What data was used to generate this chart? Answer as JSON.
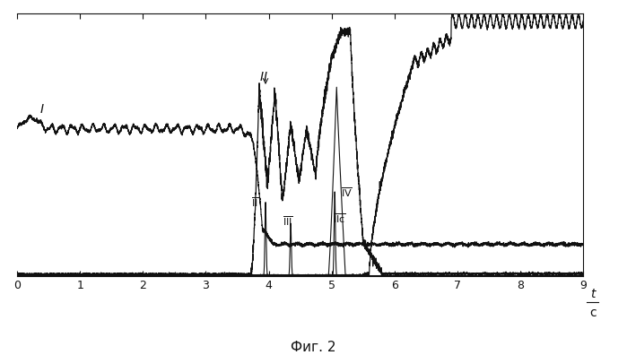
{
  "xlim": [
    0,
    9
  ],
  "ylim": [
    0,
    1
  ],
  "xticks": [
    0,
    1,
    2,
    3,
    4,
    5,
    6,
    7,
    8,
    9
  ],
  "bg_color": "#ffffff",
  "line_color": "#111111",
  "title": "Фиг. 2",
  "curve_I_level": 0.56,
  "curve_I_noise": 0.007,
  "curve_top_start": 5.5,
  "curve_top_osc_freq": 0.1,
  "curve_top_osc_amp": 0.025,
  "curve_top_max": 0.97
}
